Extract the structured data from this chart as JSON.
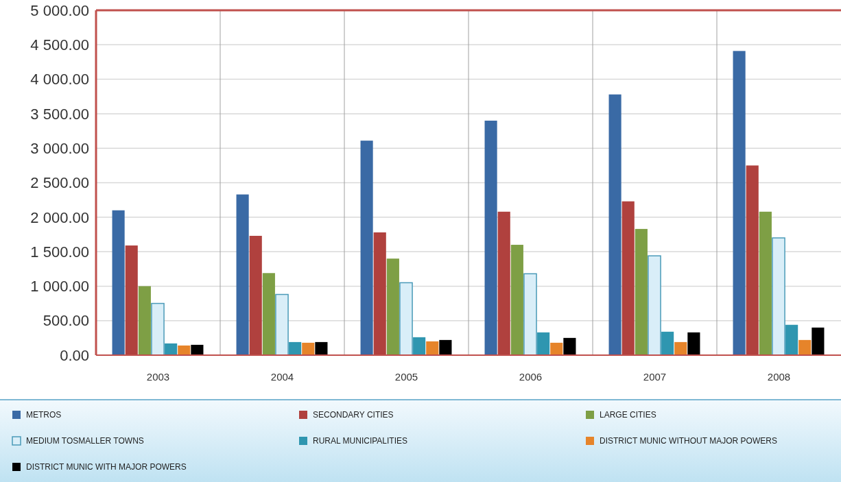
{
  "chart_data": {
    "type": "bar",
    "categories": [
      "2003",
      "2004",
      "2005",
      "2006",
      "2007",
      "2008"
    ],
    "ylim": [
      0,
      5000
    ],
    "yticks": [
      {
        "value": 0,
        "label": "0.00"
      },
      {
        "value": 500,
        "label": "500.00"
      },
      {
        "value": 1000,
        "label": "1 000.00"
      },
      {
        "value": 1500,
        "label": "1 500.00"
      },
      {
        "value": 2000,
        "label": "2 000.00"
      },
      {
        "value": 2500,
        "label": "2 500.00"
      },
      {
        "value": 3000,
        "label": "3 000.00"
      },
      {
        "value": 3500,
        "label": "3 500.00"
      },
      {
        "value": 4000,
        "label": "4 000.00"
      },
      {
        "value": 4500,
        "label": "4 500.00"
      },
      {
        "value": 5000,
        "label": "5 000.00"
      }
    ],
    "grid": true,
    "legend": "bottom",
    "series": [
      {
        "name": "METROS",
        "color": "#3a6aa5",
        "values": [
          2100,
          2330,
          3110,
          3400,
          3780,
          4410
        ]
      },
      {
        "name": "SECONDARY CITIES",
        "color": "#b0413e",
        "values": [
          1590,
          1730,
          1780,
          2080,
          2230,
          2750
        ]
      },
      {
        "name": "LARGE CITIES",
        "color": "#7e9f45",
        "values": [
          1000,
          1190,
          1400,
          1600,
          1830,
          2080
        ]
      },
      {
        "name": "MEDIUM TOSMALLER TOWNS",
        "color": "#d9eef8",
        "values": [
          750,
          880,
          1050,
          1180,
          1440,
          1700
        ]
      },
      {
        "name": "RURAL MUNICIPALITIES",
        "color": "#2f96b0",
        "values": [
          170,
          190,
          260,
          330,
          340,
          440
        ]
      },
      {
        "name": "DISTRICT MUNIC WITHOUT MAJOR POWERS",
        "color": "#e6842a",
        "values": [
          140,
          180,
          200,
          180,
          190,
          220
        ]
      },
      {
        "name": "DISTRICT MUNIC WITH MAJOR POWERS",
        "color": "#000000",
        "values": [
          150,
          190,
          220,
          250,
          330,
          400
        ]
      }
    ]
  }
}
